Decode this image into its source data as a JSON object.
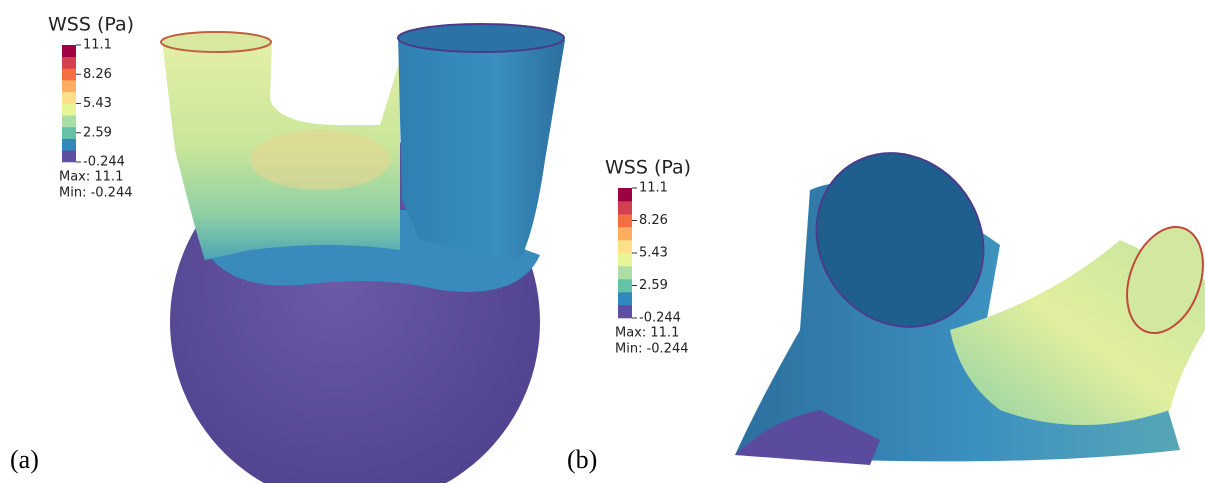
{
  "figure": {
    "colorbar_colors": [
      "#5e4fa2",
      "#3288bd",
      "#66c2a5",
      "#abdda4",
      "#e6f598",
      "#fee08b",
      "#fdae61",
      "#f46d43",
      "#d53e4f",
      "#9e0142"
    ],
    "panels": [
      {
        "label": "(a)",
        "legend": {
          "title": "WSS (Pa)",
          "ticks": [
            "11.1",
            "8.26",
            "5.43",
            "2.59",
            "-0.244"
          ],
          "max": "Max:  11.1",
          "min": "Min: -0.244"
        }
      },
      {
        "label": "(b)",
        "legend": {
          "title": "WSS (Pa)",
          "ticks": [
            "11.1",
            "8.26",
            "5.43",
            "2.59",
            "-0.244"
          ],
          "max": "Max:  11.1",
          "min": "Min: -0.244"
        }
      }
    ]
  }
}
